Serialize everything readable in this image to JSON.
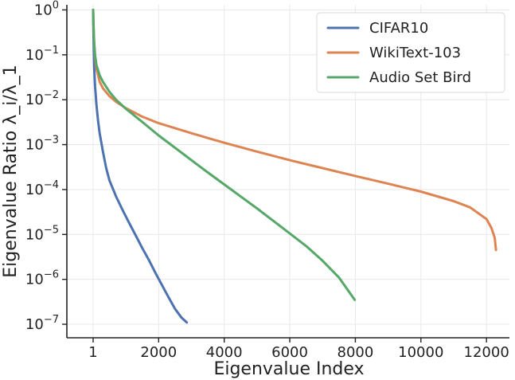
{
  "chart_data": {
    "type": "line",
    "title": "",
    "xlabel": "Eigenvalue Index",
    "ylabel": "Eigenvalue Ratio λ_i/λ_1",
    "xscale": "linear",
    "yscale": "log",
    "xlim": [
      -800,
      12700
    ],
    "ylim": [
      5e-08,
      1.3
    ],
    "grid": true,
    "legend": "top-right",
    "x_ticks": [
      {
        "value": 1,
        "label": "1"
      },
      {
        "value": 2000,
        "label": "2000"
      },
      {
        "value": 4000,
        "label": "4000"
      },
      {
        "value": 6000,
        "label": "6000"
      },
      {
        "value": 8000,
        "label": "8000"
      },
      {
        "value": 10000,
        "label": "10000"
      },
      {
        "value": 12000,
        "label": "12000"
      }
    ],
    "y_ticks": [
      {
        "value": 1,
        "base": "10",
        "exp": "0"
      },
      {
        "value": 0.1,
        "base": "10",
        "exp": "−1"
      },
      {
        "value": 0.01,
        "base": "10",
        "exp": "−2"
      },
      {
        "value": 0.001,
        "base": "10",
        "exp": "−3"
      },
      {
        "value": 0.0001,
        "base": "10",
        "exp": "−4"
      },
      {
        "value": 1e-05,
        "base": "10",
        "exp": "−5"
      },
      {
        "value": 1e-06,
        "base": "10",
        "exp": "−6"
      },
      {
        "value": 1e-07,
        "base": "10",
        "exp": "−7"
      }
    ],
    "series": [
      {
        "name": "CIFAR10",
        "color": "#4c72b0",
        "x": [
          1,
          10,
          30,
          60,
          100,
          150,
          200,
          300,
          400,
          500,
          700,
          900,
          1100,
          1300,
          1500,
          1700,
          1900,
          2100,
          2300,
          2500,
          2700,
          2860
        ],
        "y": [
          1,
          0.3,
          0.06,
          0.02,
          0.008,
          0.0035,
          0.0018,
          0.0007,
          0.0003,
          0.00016,
          7e-05,
          3.5e-05,
          1.8e-05,
          9.5e-06,
          5e-06,
          2.7e-06,
          1.4e-06,
          7.5e-07,
          4e-07,
          2.2e-07,
          1.4e-07,
          1.1e-07
        ]
      },
      {
        "name": "WikiText-103",
        "color": "#dd8452",
        "x": [
          1,
          10,
          30,
          60,
          100,
          200,
          300,
          500,
          700,
          1000,
          1500,
          2000,
          3000,
          4000,
          5000,
          6000,
          7000,
          8000,
          9000,
          10000,
          11000,
          11500,
          12000,
          12150,
          12250,
          12290
        ],
        "y": [
          1,
          0.5,
          0.2,
          0.09,
          0.05,
          0.025,
          0.018,
          0.012,
          0.009,
          0.0065,
          0.0042,
          0.003,
          0.0018,
          0.0011,
          0.0007,
          0.00045,
          0.0003,
          0.0002,
          0.000135,
          9e-05,
          5.5e-05,
          4e-05,
          2.2e-05,
          1.4e-05,
          8.5e-06,
          4.5e-06
        ]
      },
      {
        "name": "Audio Set Bird",
        "color": "#55a868",
        "x": [
          1,
          10,
          30,
          60,
          100,
          200,
          300,
          500,
          700,
          1000,
          1500,
          2000,
          2500,
          3000,
          3500,
          4000,
          4500,
          5000,
          5500,
          6000,
          6500,
          7000,
          7500,
          7980
        ],
        "y": [
          1,
          0.5,
          0.2,
          0.1,
          0.06,
          0.035,
          0.025,
          0.015,
          0.01,
          0.0063,
          0.0032,
          0.0016,
          0.00085,
          0.00045,
          0.00024,
          0.00013,
          7e-05,
          3.8e-05,
          2e-05,
          1.05e-05,
          5.5e-06,
          2.6e-06,
          1.1e-06,
          3.5e-07
        ]
      }
    ]
  }
}
